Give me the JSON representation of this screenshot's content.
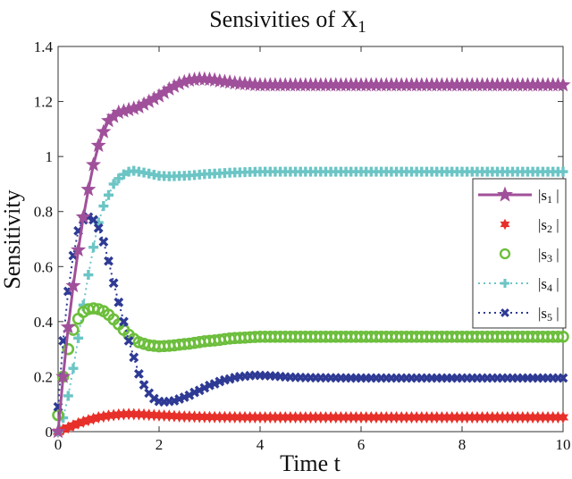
{
  "chart_data": {
    "type": "line",
    "title": "Sensivities of X",
    "title_subscript": "1",
    "xlabel": "Time t",
    "ylabel": "Sensitivity",
    "xlim": [
      0,
      10
    ],
    "ylim": [
      0,
      1.4
    ],
    "xticks": [
      0,
      2,
      4,
      6,
      8,
      10
    ],
    "xtick_labels": [
      "0",
      "2",
      "4",
      "6",
      "8",
      "10"
    ],
    "yticks": [
      0,
      0.2,
      0.4,
      0.6,
      0.8,
      1.0,
      1.2,
      1.4
    ],
    "ytick_labels": [
      "0",
      "0.2",
      "0.4",
      "0.6",
      "0.8",
      "1",
      "1.2",
      "1.4"
    ],
    "grid": false,
    "legend_position": "right",
    "series": [
      {
        "name": "|s1|",
        "label": "|s",
        "sub": "1",
        "color": "#A0509A",
        "marker": "star5",
        "line": "solid",
        "x": [
          0,
          0.1,
          0.2,
          0.3,
          0.4,
          0.5,
          0.6,
          0.7,
          0.8,
          0.9,
          1.0,
          1.2,
          1.4,
          1.6,
          1.8,
          2.0,
          2.2,
          2.4,
          2.6,
          2.8,
          3.0,
          3.3,
          3.6,
          4.0,
          4.5,
          5,
          6,
          7,
          8,
          9,
          10
        ],
        "y": [
          0.0,
          0.2,
          0.38,
          0.53,
          0.66,
          0.78,
          0.88,
          0.97,
          1.04,
          1.09,
          1.13,
          1.16,
          1.17,
          1.18,
          1.2,
          1.22,
          1.245,
          1.265,
          1.277,
          1.282,
          1.28,
          1.272,
          1.265,
          1.26,
          1.26,
          1.26,
          1.26,
          1.26,
          1.26,
          1.26,
          1.26
        ]
      },
      {
        "name": "|s2|",
        "label": "|s",
        "sub": "2",
        "color": "#E8302A",
        "marker": "star6",
        "line": "none",
        "x": [
          0,
          0.2,
          0.4,
          0.6,
          0.8,
          1.0,
          1.2,
          1.4,
          1.6,
          1.8,
          2.0,
          2.5,
          3,
          4,
          5,
          6,
          7,
          8,
          9,
          10
        ],
        "y": [
          0.0,
          0.015,
          0.03,
          0.042,
          0.052,
          0.058,
          0.062,
          0.064,
          0.063,
          0.061,
          0.059,
          0.055,
          0.053,
          0.052,
          0.052,
          0.052,
          0.052,
          0.052,
          0.052,
          0.052
        ]
      },
      {
        "name": "|s3|",
        "label": "|s",
        "sub": "3",
        "color": "#6CBE3C",
        "marker": "circle",
        "line": "none",
        "x": [
          0,
          0.1,
          0.2,
          0.3,
          0.4,
          0.5,
          0.6,
          0.7,
          0.8,
          0.9,
          1.0,
          1.1,
          1.2,
          1.3,
          1.4,
          1.5,
          1.6,
          1.8,
          2.0,
          2.2,
          2.5,
          3.0,
          3.5,
          4.0,
          5,
          6,
          7,
          8,
          9,
          10
        ],
        "y": [
          0.06,
          0.2,
          0.3,
          0.37,
          0.41,
          0.435,
          0.445,
          0.448,
          0.445,
          0.438,
          0.425,
          0.408,
          0.39,
          0.37,
          0.352,
          0.337,
          0.325,
          0.314,
          0.31,
          0.312,
          0.318,
          0.33,
          0.34,
          0.345,
          0.345,
          0.345,
          0.345,
          0.345,
          0.345,
          0.345
        ]
      },
      {
        "name": "|s4|",
        "label": "|s",
        "sub": "4",
        "color": "#6CC5C5",
        "marker": "plus",
        "line": "dotted",
        "x": [
          0,
          0.1,
          0.2,
          0.3,
          0.4,
          0.5,
          0.6,
          0.7,
          0.8,
          0.9,
          1.0,
          1.1,
          1.2,
          1.3,
          1.4,
          1.5,
          1.6,
          1.8,
          2.0,
          2.2,
          2.5,
          3.0,
          3.5,
          4.0,
          5,
          6,
          7,
          8,
          9,
          10
        ],
        "y": [
          0.0,
          0.05,
          0.13,
          0.23,
          0.34,
          0.46,
          0.57,
          0.67,
          0.76,
          0.82,
          0.86,
          0.9,
          0.92,
          0.935,
          0.945,
          0.948,
          0.945,
          0.938,
          0.93,
          0.928,
          0.93,
          0.937,
          0.942,
          0.945,
          0.945,
          0.945,
          0.945,
          0.945,
          0.945,
          0.945
        ]
      },
      {
        "name": "|s5|",
        "label": "|s",
        "sub": "5",
        "color": "#2E3A94",
        "marker": "x",
        "line": "dotted",
        "x": [
          0,
          0.1,
          0.2,
          0.3,
          0.4,
          0.5,
          0.6,
          0.7,
          0.8,
          0.9,
          1.0,
          1.1,
          1.2,
          1.3,
          1.4,
          1.5,
          1.6,
          1.7,
          1.8,
          1.9,
          2.0,
          2.1,
          2.3,
          2.5,
          2.8,
          3.0,
          3.3,
          3.6,
          3.9,
          4.2,
          4.6,
          5,
          6,
          7,
          8,
          9,
          10
        ],
        "y": [
          0.09,
          0.33,
          0.51,
          0.64,
          0.73,
          0.77,
          0.78,
          0.77,
          0.74,
          0.69,
          0.62,
          0.54,
          0.47,
          0.4,
          0.33,
          0.27,
          0.21,
          0.17,
          0.14,
          0.12,
          0.11,
          0.108,
          0.112,
          0.125,
          0.15,
          0.168,
          0.188,
          0.2,
          0.205,
          0.203,
          0.198,
          0.196,
          0.195,
          0.195,
          0.195,
          0.195,
          0.195
        ]
      }
    ]
  }
}
